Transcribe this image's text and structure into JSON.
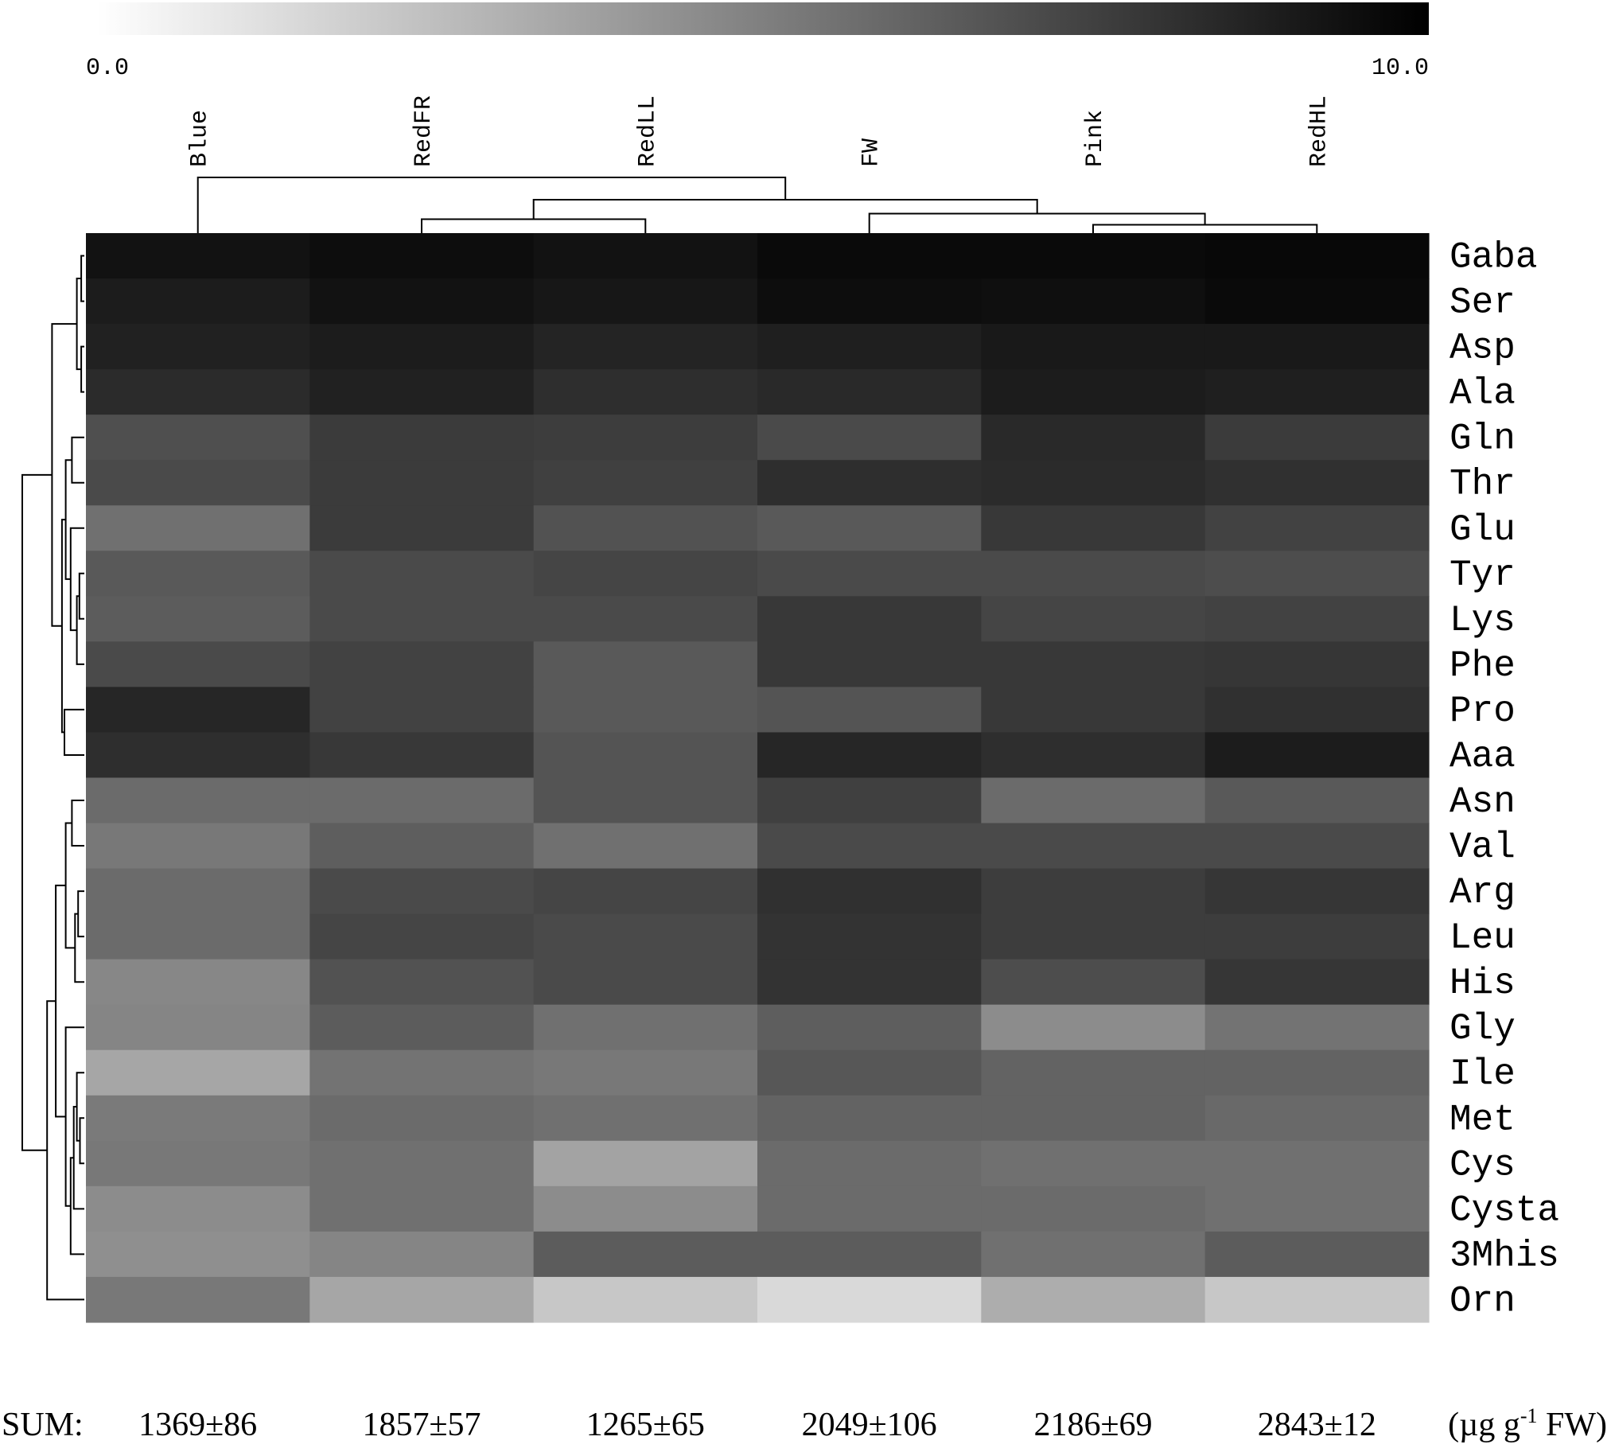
{
  "chart_data": {
    "type": "heatmap",
    "colorbar": {
      "min_label": "0.0",
      "max_label": "10.0",
      "min": 0,
      "max": 10,
      "scale": "white-to-black"
    },
    "columns": [
      "Blue",
      "RedFR",
      "RedLL",
      "FW",
      "Pink",
      "RedHL"
    ],
    "rows": [
      "Gaba",
      "Ser",
      "Asp",
      "Ala",
      "Gln",
      "Thr",
      "Glu",
      "Tyr",
      "Lys",
      "Phe",
      "Pro",
      "Aaa",
      "Asn",
      "Val",
      "Arg",
      "Leu",
      "His",
      "Gly",
      "Ile",
      "Met",
      "Cys",
      "Cysta",
      "3Mhis",
      "Orn"
    ],
    "values": [
      [
        9.3,
        9.5,
        9.3,
        9.6,
        9.6,
        9.7
      ],
      [
        8.9,
        9.3,
        9.1,
        9.5,
        9.4,
        9.6
      ],
      [
        8.7,
        8.9,
        8.6,
        8.8,
        9.0,
        9.0
      ],
      [
        8.3,
        8.7,
        8.2,
        8.4,
        8.9,
        8.8
      ],
      [
        6.9,
        7.7,
        7.6,
        7.1,
        8.4,
        7.7
      ],
      [
        7.1,
        7.7,
        7.5,
        8.2,
        8.3,
        8.1
      ],
      [
        5.6,
        7.7,
        6.8,
        6.5,
        7.8,
        7.4
      ],
      [
        6.5,
        7.1,
        7.3,
        7.1,
        7.1,
        7.0
      ],
      [
        6.4,
        7.1,
        7.1,
        7.8,
        7.3,
        7.4
      ],
      [
        7.1,
        7.4,
        6.5,
        7.8,
        7.8,
        7.9
      ],
      [
        8.5,
        7.4,
        6.5,
        6.7,
        7.8,
        8.1
      ],
      [
        8.2,
        7.8,
        6.7,
        8.5,
        8.2,
        8.9
      ],
      [
        5.8,
        5.8,
        6.7,
        7.5,
        5.8,
        6.5
      ],
      [
        5.3,
        6.3,
        5.6,
        7.1,
        7.1,
        7.1
      ],
      [
        5.8,
        7.1,
        7.3,
        8.1,
        7.6,
        7.9
      ],
      [
        5.8,
        7.3,
        7.1,
        8.0,
        7.6,
        7.6
      ],
      [
        4.7,
        6.8,
        7.1,
        8.0,
        7.0,
        7.9
      ],
      [
        4.8,
        6.4,
        5.6,
        6.3,
        4.5,
        5.5
      ],
      [
        3.5,
        5.5,
        5.3,
        6.6,
        6.1,
        6.1
      ],
      [
        5.2,
        5.8,
        5.6,
        6.1,
        6.1,
        5.9
      ],
      [
        5.3,
        5.6,
        3.6,
        5.8,
        5.6,
        5.6
      ],
      [
        4.5,
        5.6,
        4.5,
        5.8,
        5.8,
        5.6
      ],
      [
        4.4,
        4.8,
        6.4,
        6.4,
        5.6,
        6.4
      ],
      [
        5.3,
        3.5,
        2.2,
        1.5,
        3.2,
        2.2
      ]
    ],
    "sums": [
      "1369±86",
      "1857±57",
      "1265±65",
      "2049±106",
      "2186±69",
      "2843±12"
    ],
    "sum_label": "SUM:",
    "unit_label": {
      "pre": "(µg g",
      "sup": "-1",
      "post": " FW)"
    },
    "column_dendrogram": {
      "leaves": [
        "Blue",
        "RedFR",
        "RedLL",
        "FW",
        "Pink",
        "RedHL"
      ],
      "merges": [
        {
          "a": "Pink",
          "b": "RedHL",
          "height": 0.15
        },
        {
          "a": "RedFR",
          "b": "RedLL",
          "height": 0.25
        },
        {
          "a": "FW",
          "b": [
            "Pink",
            "RedHL"
          ],
          "height": 0.35
        },
        {
          "a": [
            "RedFR",
            "RedLL"
          ],
          "b": [
            "FW",
            "Pink",
            "RedHL"
          ],
          "height": 0.6
        },
        {
          "a": "Blue",
          "b": [
            "RedFR",
            "RedLL",
            "FW",
            "Pink",
            "RedHL"
          ],
          "height": 1.0
        }
      ]
    },
    "row_dendrogram": {
      "merges": [
        {
          "a": "Gaba",
          "b": "Ser",
          "height": 0.05
        },
        {
          "a": "Asp",
          "b": "Ala",
          "height": 0.05
        },
        {
          "a": [
            "Gaba",
            "Ser"
          ],
          "b": [
            "Asp",
            "Ala"
          ],
          "height": 0.12
        },
        {
          "a": "Gln",
          "b": "Thr",
          "height": 0.2
        },
        {
          "a": "Tyr",
          "b": "Lys",
          "height": 0.08
        },
        {
          "a": "Phe",
          "b": [
            "Tyr",
            "Lys"
          ],
          "height": 0.12
        },
        {
          "a": "Glu",
          "b": [
            "Tyr",
            "Lys",
            "Phe"
          ],
          "height": 0.22
        },
        {
          "a": [
            "Gln",
            "Thr"
          ],
          "b": [
            "Glu",
            "Tyr",
            "Lys",
            "Phe"
          ],
          "height": 0.3
        },
        {
          "a": "Pro",
          "b": "Aaa",
          "height": 0.32
        },
        {
          "a": [
            "Gln",
            "Thr",
            "Glu",
            "Tyr",
            "Lys",
            "Phe"
          ],
          "b": [
            "Pro",
            "Aaa"
          ],
          "height": 0.36
        },
        {
          "a": [
            "Gaba",
            "Ser",
            "Asp",
            "Ala"
          ],
          "b": [
            "Gln",
            "Thr",
            "Glu",
            "Tyr",
            "Lys",
            "Phe",
            "Pro",
            "Aaa"
          ],
          "height": 0.52
        },
        {
          "a": "Asn",
          "b": "Val",
          "height": 0.2
        },
        {
          "a": "Arg",
          "b": "Leu",
          "height": 0.1
        },
        {
          "a": [
            "Arg",
            "Leu"
          ],
          "b": "His",
          "height": 0.15
        },
        {
          "a": [
            "Asn",
            "Val"
          ],
          "b": [
            "Arg",
            "Leu",
            "His"
          ],
          "height": 0.3
        },
        {
          "a": "Met",
          "b": "Cys",
          "height": 0.07
        },
        {
          "a": "Ile",
          "b": [
            "Met",
            "Cys"
          ],
          "height": 0.12
        },
        {
          "a": [
            "Ile",
            "Met",
            "Cys"
          ],
          "b": "Cysta",
          "height": 0.17
        },
        {
          "a": [
            "Ile",
            "Met",
            "Cys",
            "Cysta"
          ],
          "b": "3Mhis",
          "height": 0.22
        },
        {
          "a": "Gly",
          "b": [
            "Ile",
            "Met",
            "Cys",
            "Cysta",
            "3Mhis"
          ],
          "height": 0.3
        },
        {
          "a": [
            "Asn",
            "Val",
            "Arg",
            "Leu",
            "His"
          ],
          "b": [
            "Gly",
            "Ile",
            "Met",
            "Cys",
            "Cysta",
            "3Mhis"
          ],
          "height": 0.46
        },
        {
          "a": [
            "Asn",
            "Val",
            "Arg",
            "Leu",
            "His",
            "Gly",
            "Ile",
            "Met",
            "Cys",
            "Cysta",
            "3Mhis"
          ],
          "b": "Orn",
          "height": 0.6
        },
        {
          "a": [
            "Gaba",
            "Ser",
            "Asp",
            "Ala",
            "Gln",
            "Thr",
            "Glu",
            "Tyr",
            "Lys",
            "Phe",
            "Pro",
            "Aaa"
          ],
          "b": [
            "Asn",
            "Val",
            "Arg",
            "Leu",
            "His",
            "Gly",
            "Ile",
            "Met",
            "Cys",
            "Cysta",
            "3Mhis",
            "Orn"
          ],
          "height": 1.0
        }
      ]
    }
  }
}
